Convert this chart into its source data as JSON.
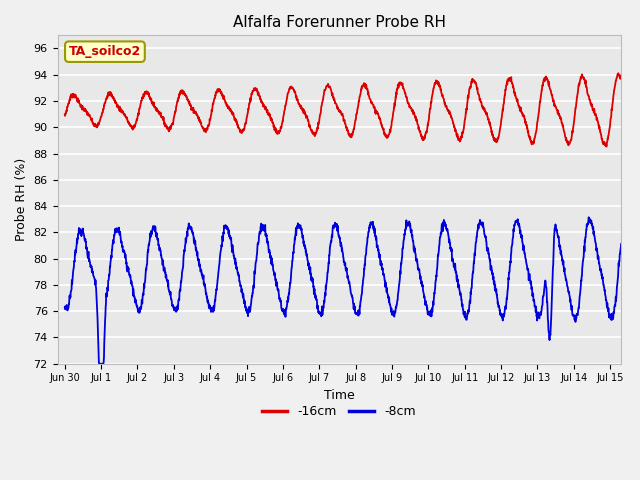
{
  "title": "Alfalfa Forerunner Probe RH",
  "xlabel": "Time",
  "ylabel": "Probe RH (%)",
  "ylim": [
    72,
    97
  ],
  "yticks": [
    72,
    74,
    76,
    78,
    80,
    82,
    84,
    86,
    88,
    90,
    92,
    94,
    96
  ],
  "background_color": "#f0f0f0",
  "plot_bg_color": "#e8e8e8",
  "legend_labels": [
    "-16cm",
    "-8cm"
  ],
  "legend_colors": [
    "#dd0000",
    "#0000dd"
  ],
  "annotation_text": "TA_soilco2",
  "annotation_bg": "#ffffcc",
  "annotation_border": "#999900",
  "x_start_day": -0.2,
  "x_end_day": 15.3,
  "x_tick_labels": [
    "Jun 30",
    "Jul 1",
    "Jul 2",
    "Jul 3",
    "Jul 4",
    "Jul 5",
    "Jul 6",
    "Jul 7",
    "Jul 8",
    "Jul 9",
    "Jul 10",
    "Jul 11",
    "Jul 12",
    "Jul 13",
    "Jul 14",
    "Jul 15"
  ],
  "x_tick_positions": [
    0,
    1,
    2,
    3,
    4,
    5,
    6,
    7,
    8,
    9,
    10,
    11,
    12,
    13,
    14,
    15
  ],
  "line_width": 1.3,
  "figsize": [
    6.4,
    4.8
  ],
  "dpi": 100
}
